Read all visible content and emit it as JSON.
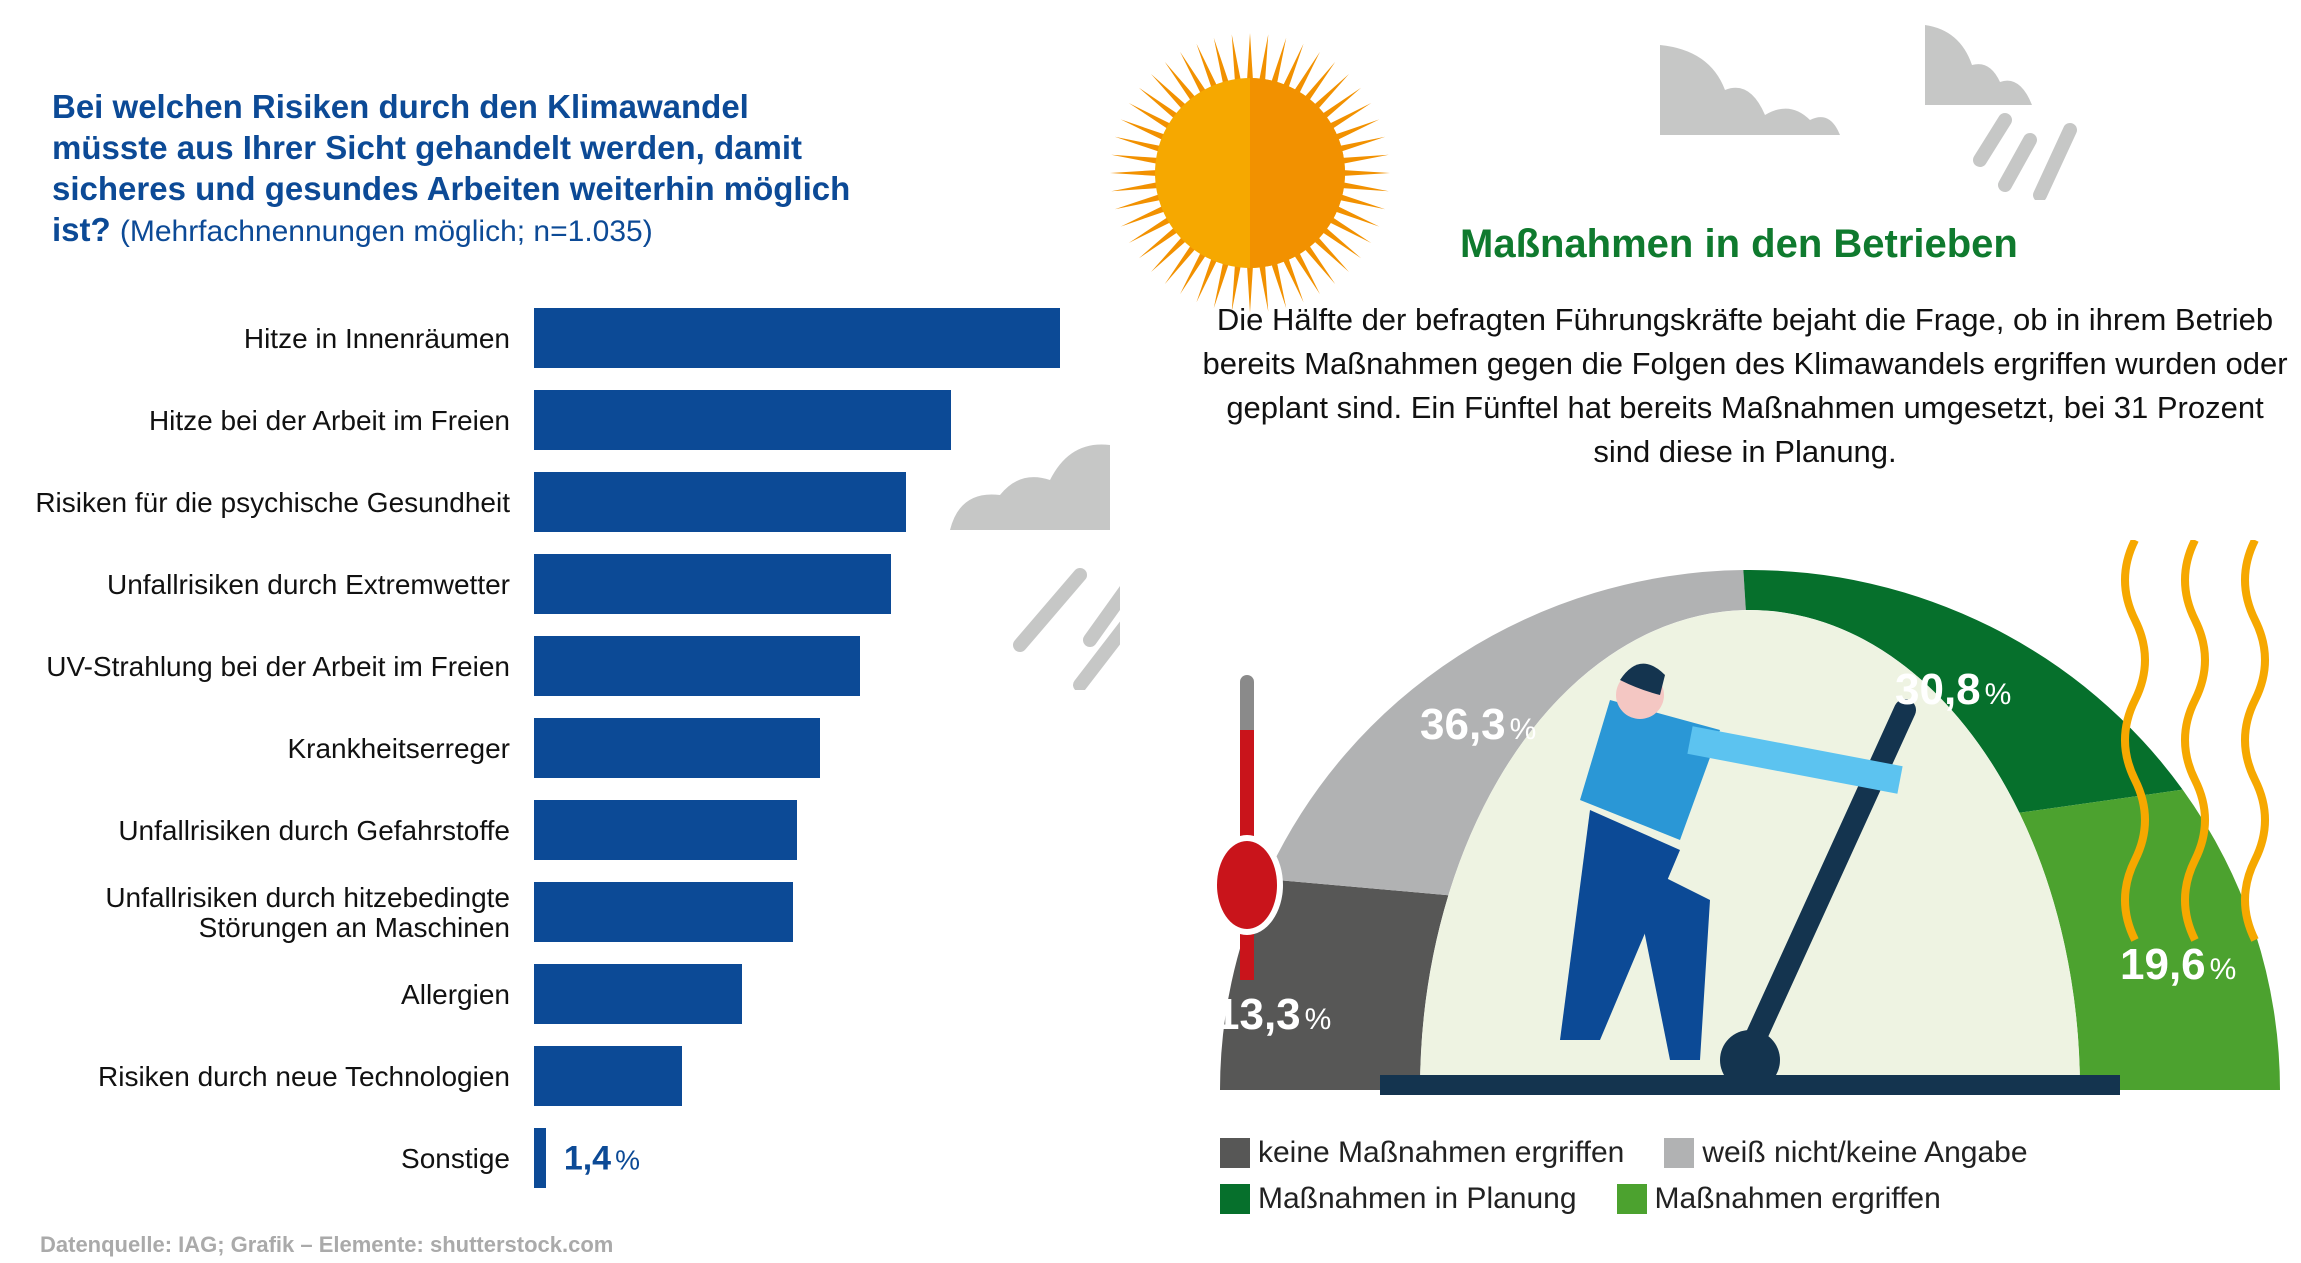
{
  "left": {
    "title_bold": "Bei welchen Risiken durch den Klimawandel müsste aus Ihrer Sicht gehandelt werden, damit sicheres und gesundes Arbeiten weiterhin möglich ist?",
    "title_note": "(Mehrfachnennungen möglich; n=1.035)",
    "footer": "Datenquelle: IAG; Grafik – Elemente: shutterstock.com"
  },
  "right": {
    "title": "Maßnahmen in den Betrieben",
    "text": "Die Hälfte der befragten Führungskräfte bejaht die Frage, ob in ihrem Betrieb bereits Maßnahmen gegen die Folgen des Klimawandels ergriffen wurden oder geplant sind. Ein Fünftel hat bereits Maßnahmen umgesetzt, bei 31 Prozent sind diese in Planung."
  },
  "pct_sign": "%",
  "colors": {
    "bar": "#0c4a96",
    "keine": "#575756",
    "weiss_nicht": "#b1b2b3",
    "planung": "#06702c",
    "ergriffen": "#4ca22f"
  },
  "chart_data": [
    {
      "type": "bar",
      "orientation": "horizontal",
      "title": "Bei welchen Risiken durch den Klimawandel müsste aus Ihrer Sicht gehandelt werden, damit sicheres und gesundes Arbeiten weiterhin möglich ist? (Mehrfachnennungen möglich; n=1.035)",
      "unit": "%",
      "categories": [
        "Hitze in Innenräumen",
        "Hitze bei der Arbeit im Freien",
        "Risiken für die psychische Gesundheit",
        "Unfallrisiken durch Extremwetter",
        "UV-Strahlung bei der Arbeit im Freien",
        "Krankheitserreger",
        "Unfallrisiken durch Gefahrstoffe",
        "Unfallrisiken durch hitzebedingte Störungen an Maschinen",
        "Allergien",
        "Risiken durch neue Technologien",
        "Sonstige"
      ],
      "values": [
        62.2,
        49.3,
        44.0,
        42.2,
        38.5,
        33.8,
        31.1,
        30.6,
        24.6,
        17.5,
        1.4
      ],
      "labels": [
        "62,2",
        "49,3",
        "44,0",
        "42,2",
        "38,5",
        "33,8",
        "31,1",
        "30,6",
        "24,6",
        "17,5",
        "1,4"
      ],
      "grid": false
    },
    {
      "type": "pie",
      "variant": "semicircle-gauge",
      "title": "Maßnahmen in den Betrieben",
      "categories": [
        "keine Maßnahmen ergriffen",
        "weiß nicht/keine Angabe",
        "Maßnahmen in Planung",
        "Maßnahmen ergriffen"
      ],
      "values": [
        13.3,
        36.3,
        30.8,
        19.6
      ],
      "labels": [
        "13,3",
        "36,3",
        "30,8",
        "19,6"
      ],
      "legend_position": "bottom"
    }
  ]
}
